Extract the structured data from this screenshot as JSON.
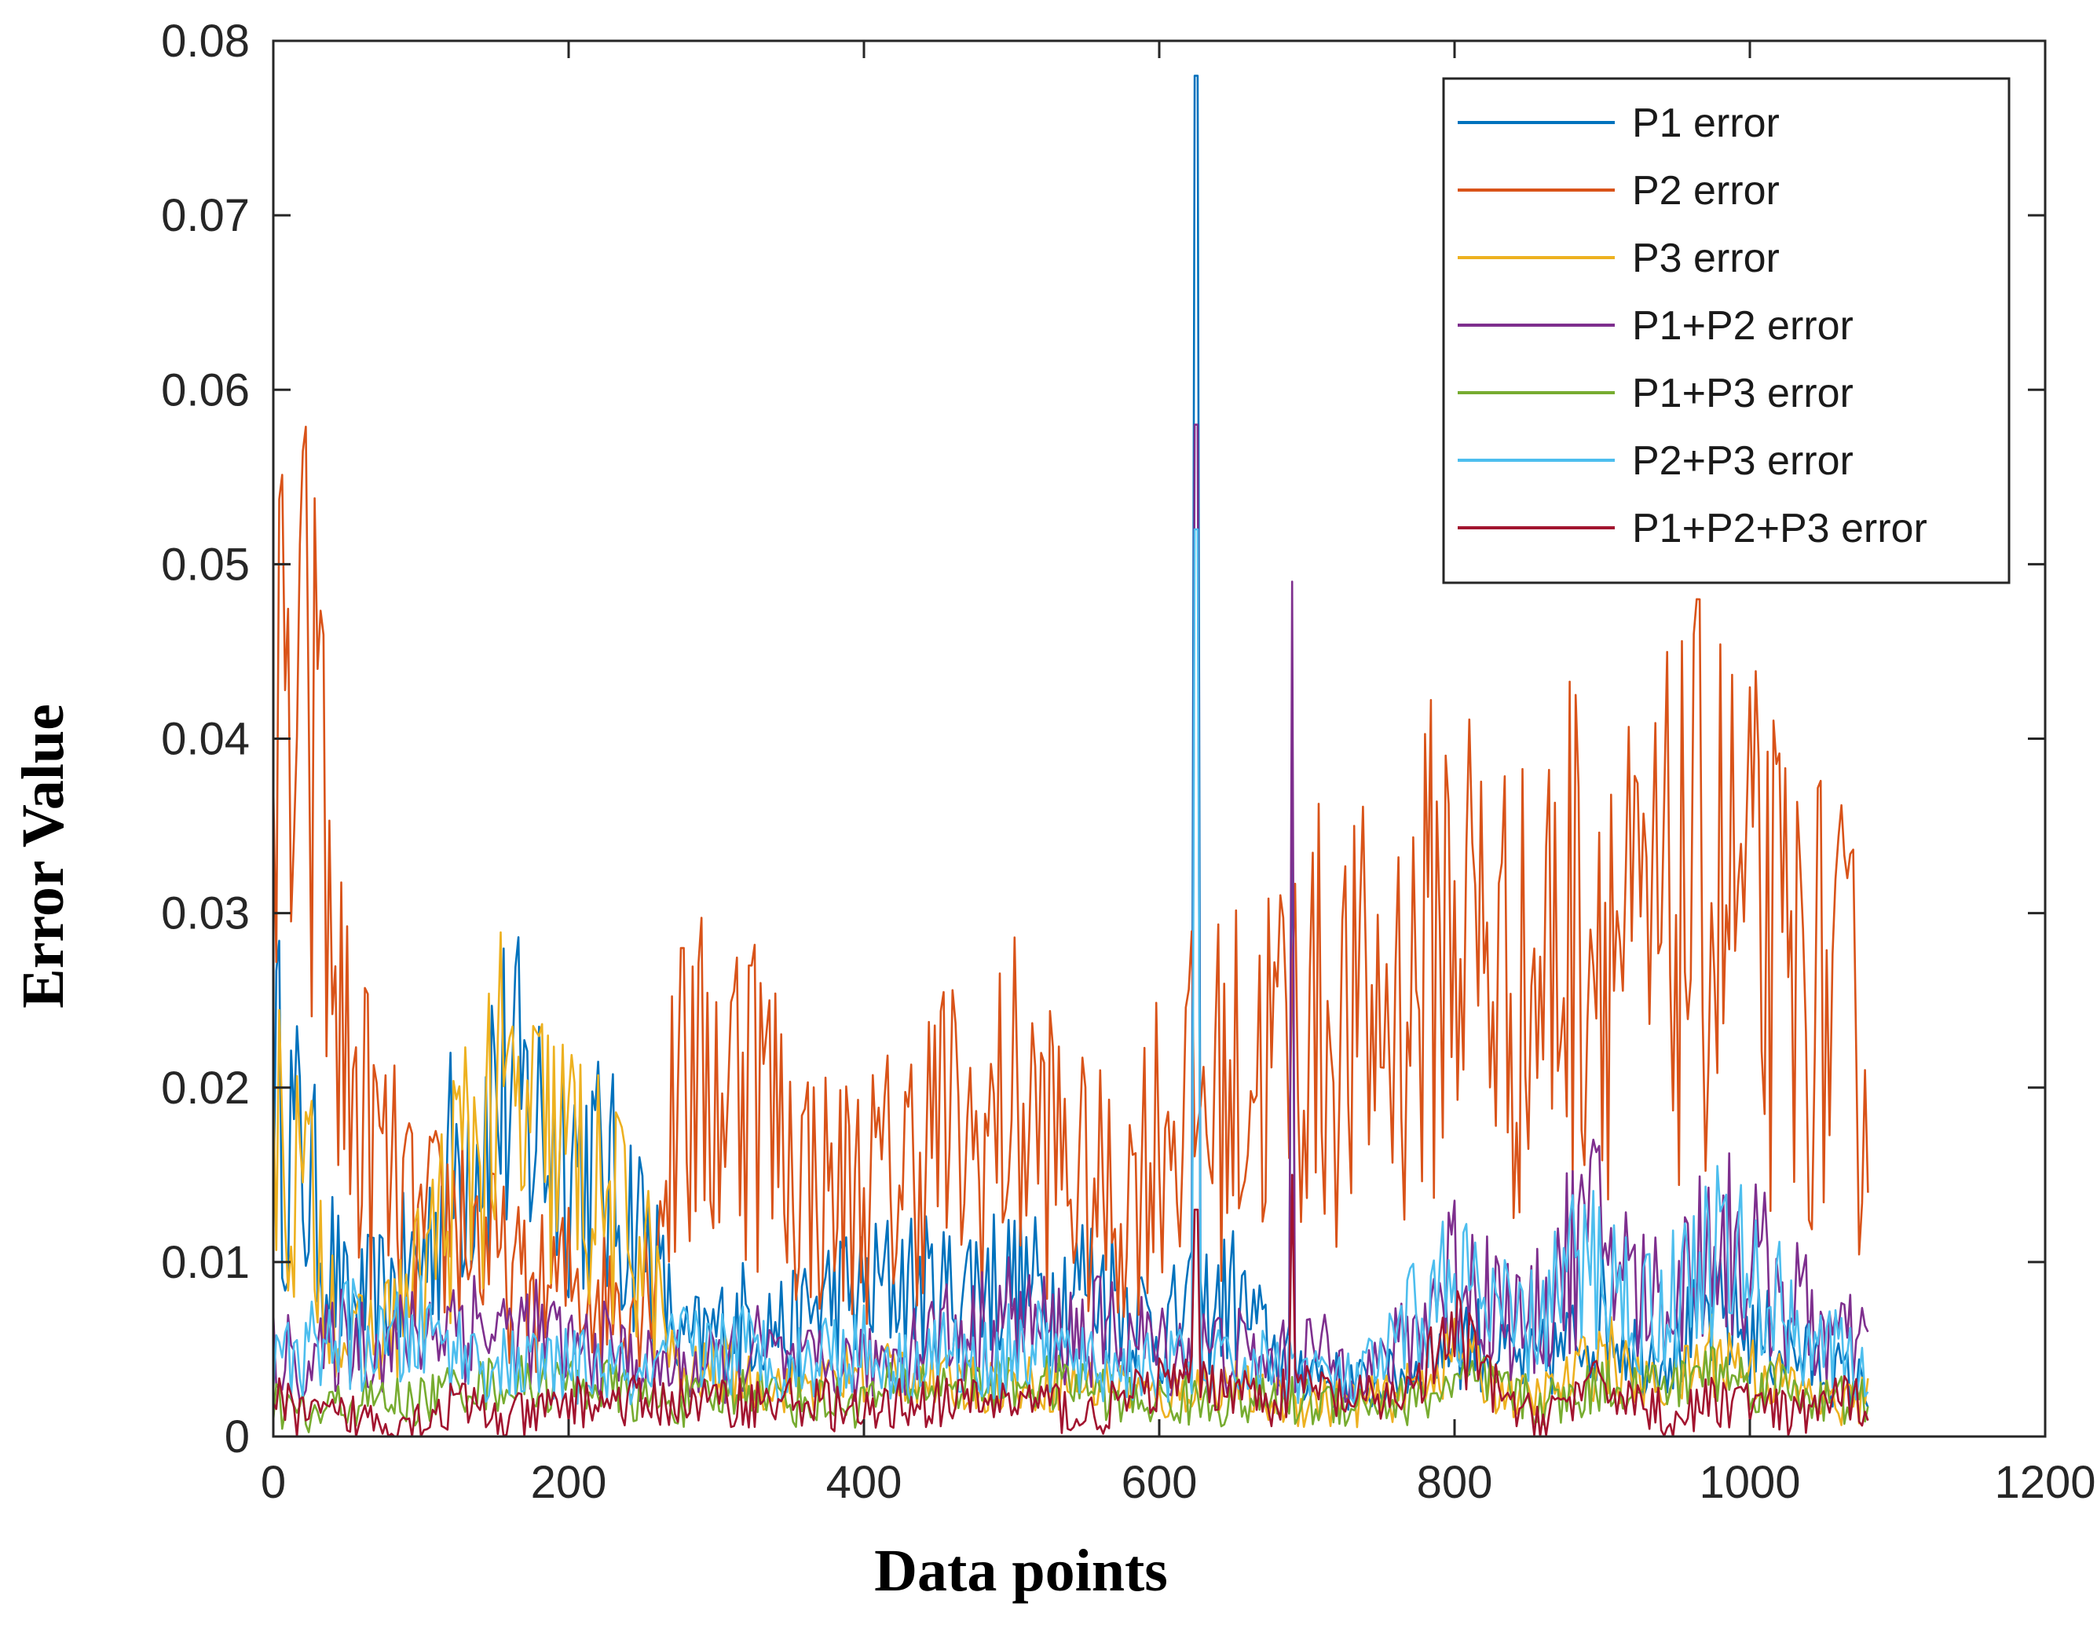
{
  "chart_data": {
    "type": "line",
    "title": "",
    "xlabel": "Data points",
    "ylabel": "Error Value",
    "xlim": [
      0,
      1200
    ],
    "ylim": [
      0,
      0.08
    ],
    "xticks": [
      0,
      200,
      400,
      600,
      800,
      1000,
      1200
    ],
    "xtick_labels": [
      "0",
      "200",
      "400",
      "600",
      "800",
      "1000",
      "1200"
    ],
    "yticks": [
      0,
      0.01,
      0.02,
      0.03,
      0.04,
      0.05,
      0.06,
      0.07,
      0.08
    ],
    "ytick_labels": [
      "0",
      "0.01",
      "0.02",
      "0.03",
      "0.04",
      "0.05",
      "0.06",
      "0.07",
      "0.08"
    ],
    "grid": false,
    "legend_position": "top-right",
    "x": [
      0,
      25,
      50,
      75,
      100,
      125,
      150,
      175,
      200,
      225,
      250,
      275,
      300,
      325,
      350,
      375,
      400,
      425,
      450,
      475,
      500,
      525,
      550,
      575,
      600,
      625,
      650,
      675,
      700,
      725,
      750,
      775,
      800,
      825,
      850,
      875,
      900,
      925,
      950,
      975,
      1000,
      1025,
      1050,
      1075
    ],
    "series": [
      {
        "name": "P1 error",
        "color": "#0072BD",
        "values": [
          0.02,
          0.014,
          0.007,
          0.008,
          0.01,
          0.016,
          0.02,
          0.018,
          0.017,
          0.014,
          0.012,
          0.005,
          0.006,
          0.007,
          0.006,
          0.008,
          0.008,
          0.009,
          0.008,
          0.009,
          0.009,
          0.008,
          0.009,
          0.008,
          0.006,
          0.007,
          0.008,
          0.005,
          0.004,
          0.003,
          0.003,
          0.004,
          0.006,
          0.005,
          0.004,
          0.005,
          0.007,
          0.005,
          0.005,
          0.007,
          0.006,
          0.005,
          0.004,
          0.003
        ],
        "spikes": [
          {
            "x": 625,
            "y": 0.078
          },
          {
            "x": 690,
            "y": 0.042
          }
        ]
      },
      {
        "name": "P2 error",
        "color": "#D95319",
        "values": [
          0.037,
          0.039,
          0.02,
          0.015,
          0.011,
          0.013,
          0.01,
          0.008,
          0.009,
          0.008,
          0.008,
          0.019,
          0.02,
          0.021,
          0.016,
          0.014,
          0.014,
          0.015,
          0.018,
          0.016,
          0.019,
          0.017,
          0.014,
          0.013,
          0.018,
          0.019,
          0.02,
          0.022,
          0.024,
          0.023,
          0.024,
          0.026,
          0.031,
          0.027,
          0.025,
          0.029,
          0.031,
          0.026,
          0.03,
          0.032,
          0.029,
          0.026,
          0.025,
          0.022
        ],
        "spikes": [
          {
            "x": 30,
            "y": 0.044
          },
          {
            "x": 277,
            "y": 0.028
          },
          {
            "x": 323,
            "y": 0.027
          }
        ]
      },
      {
        "name": "P3 error",
        "color": "#EDB120",
        "values": [
          0.018,
          0.013,
          0.005,
          0.006,
          0.009,
          0.015,
          0.019,
          0.017,
          0.016,
          0.013,
          0.011,
          0.003,
          0.004,
          0.003,
          0.003,
          0.003,
          0.004,
          0.004,
          0.003,
          0.003,
          0.003,
          0.003,
          0.003,
          0.003,
          0.002,
          0.003,
          0.003,
          0.002,
          0.002,
          0.002,
          0.002,
          0.003,
          0.005,
          0.003,
          0.002,
          0.003,
          0.005,
          0.003,
          0.003,
          0.005,
          0.004,
          0.003,
          0.002,
          0.002
        ],
        "spikes": []
      },
      {
        "name": "P1+P2 error",
        "color": "#7E2F8E",
        "values": [
          0.005,
          0.004,
          0.006,
          0.005,
          0.006,
          0.007,
          0.006,
          0.006,
          0.005,
          0.005,
          0.004,
          0.004,
          0.004,
          0.005,
          0.004,
          0.004,
          0.004,
          0.005,
          0.006,
          0.006,
          0.007,
          0.006,
          0.006,
          0.006,
          0.005,
          0.005,
          0.005,
          0.004,
          0.005,
          0.004,
          0.004,
          0.006,
          0.01,
          0.008,
          0.006,
          0.01,
          0.012,
          0.008,
          0.008,
          0.012,
          0.01,
          0.008,
          0.006,
          0.005
        ],
        "spikes": [
          {
            "x": 625,
            "y": 0.058
          },
          {
            "x": 690,
            "y": 0.049
          }
        ]
      },
      {
        "name": "P1+P3 error",
        "color": "#77AC30",
        "values": [
          0.002,
          0.001,
          0.002,
          0.002,
          0.002,
          0.003,
          0.003,
          0.003,
          0.003,
          0.003,
          0.002,
          0.002,
          0.002,
          0.003,
          0.002,
          0.002,
          0.002,
          0.003,
          0.003,
          0.003,
          0.003,
          0.003,
          0.003,
          0.002,
          0.002,
          0.002,
          0.002,
          0.002,
          0.002,
          0.002,
          0.002,
          0.002,
          0.003,
          0.003,
          0.002,
          0.002,
          0.003,
          0.003,
          0.003,
          0.004,
          0.003,
          0.003,
          0.002,
          0.002
        ],
        "spikes": []
      },
      {
        "name": "P2+P3 error",
        "color": "#4DBEEE",
        "values": [
          0.004,
          0.005,
          0.006,
          0.005,
          0.006,
          0.005,
          0.004,
          0.004,
          0.004,
          0.004,
          0.003,
          0.005,
          0.005,
          0.005,
          0.004,
          0.005,
          0.005,
          0.004,
          0.005,
          0.004,
          0.005,
          0.005,
          0.004,
          0.004,
          0.004,
          0.004,
          0.004,
          0.004,
          0.004,
          0.003,
          0.004,
          0.007,
          0.009,
          0.007,
          0.006,
          0.009,
          0.01,
          0.007,
          0.008,
          0.011,
          0.009,
          0.007,
          0.005,
          0.004
        ],
        "spikes": [
          {
            "x": 625,
            "y": 0.052
          }
        ]
      },
      {
        "name": "P1+P2+P3 error",
        "color": "#A2142F",
        "values": [
          0.002,
          0.001,
          0.001,
          0.001,
          0.001,
          0.002,
          0.001,
          0.001,
          0.002,
          0.002,
          0.002,
          0.002,
          0.002,
          0.002,
          0.002,
          0.002,
          0.001,
          0.002,
          0.002,
          0.002,
          0.002,
          0.002,
          0.001,
          0.002,
          0.003,
          0.003,
          0.003,
          0.002,
          0.003,
          0.002,
          0.002,
          0.003,
          0.006,
          0.003,
          0.001,
          0.002,
          0.003,
          0.002,
          0.001,
          0.002,
          0.002,
          0.001,
          0.002,
          0.002
        ],
        "spikes": [
          {
            "x": 625,
            "y": 0.013
          },
          {
            "x": 690,
            "y": 0.015
          }
        ]
      }
    ]
  }
}
